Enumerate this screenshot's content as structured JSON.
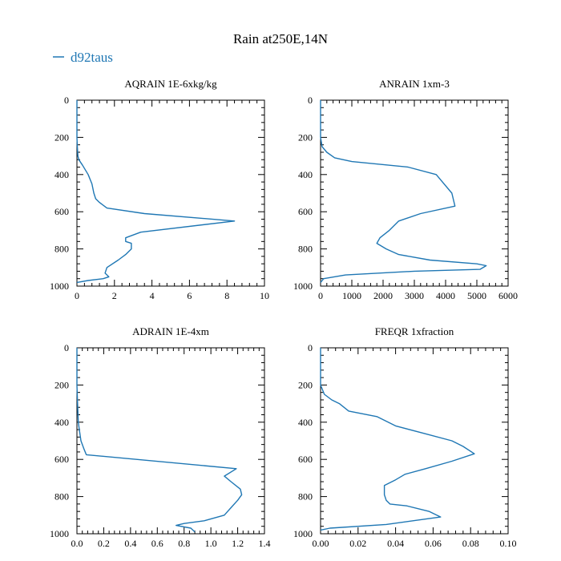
{
  "figure": {
    "title": "Rain at250E,14N",
    "legend_label": "d92taus",
    "line_color": "#1f77b4"
  },
  "chart_data": [
    {
      "type": "line",
      "title": "AQRAIN  1E-6xkg/kg",
      "xlim": [
        0,
        10
      ],
      "ylim": [
        1000,
        0
      ],
      "xticks": [
        0,
        2,
        4,
        6,
        8,
        10
      ],
      "xtick_labels": [
        "0",
        "2",
        "4",
        "6",
        "8",
        "10"
      ],
      "yticks": [
        0,
        200,
        400,
        600,
        800,
        1000
      ],
      "ytick_labels": [
        "0",
        "200",
        "400",
        "600",
        "800",
        "1000"
      ],
      "series": [
        {
          "name": "d92taus",
          "x": [
            0,
            0,
            0,
            0.02,
            0.05,
            0.1,
            0.3,
            0.6,
            0.8,
            0.9,
            1.0,
            1.2,
            1.6,
            3.6,
            8.4,
            3.4,
            2.6,
            2.6,
            2.9,
            2.9,
            2.6,
            2.2,
            1.6,
            1.5,
            1.7,
            1.4,
            0.6,
            0
          ],
          "y": [
            0,
            100,
            200,
            250,
            300,
            320,
            350,
            400,
            450,
            500,
            530,
            550,
            580,
            610,
            650,
            710,
            740,
            760,
            770,
            800,
            830,
            860,
            900,
            930,
            950,
            960,
            970,
            980
          ]
        }
      ]
    },
    {
      "type": "line",
      "title": "ANRAIN  1xm-3",
      "xlim": [
        0,
        6000
      ],
      "ylim": [
        1000,
        0
      ],
      "xticks": [
        0,
        1000,
        2000,
        3000,
        4000,
        5000,
        6000
      ],
      "xtick_labels": [
        "0",
        "1000",
        "2000",
        "3000",
        "4000",
        "5000",
        "6000"
      ],
      "yticks": [
        0,
        200,
        400,
        600,
        800,
        1000
      ],
      "ytick_labels": [
        "0",
        "200",
        "400",
        "600",
        "800",
        "1000"
      ],
      "series": [
        {
          "name": "d92taus",
          "x": [
            0,
            0,
            0,
            50,
            200,
            450,
            1000,
            2800,
            3700,
            4200,
            4300,
            3200,
            2500,
            2200,
            1900,
            1800,
            2100,
            2500,
            3500,
            5000,
            5300,
            5100,
            3000,
            800,
            100,
            0
          ],
          "y": [
            0,
            100,
            200,
            250,
            280,
            310,
            330,
            360,
            400,
            500,
            570,
            610,
            650,
            700,
            740,
            770,
            800,
            830,
            860,
            880,
            890,
            910,
            920,
            940,
            960,
            980
          ]
        }
      ]
    },
    {
      "type": "line",
      "title": "ADRAIN  1E-4xm",
      "xlim": [
        0,
        1.4
      ],
      "ylim": [
        1000,
        0
      ],
      "xticks": [
        0,
        0.2,
        0.4,
        0.6,
        0.8,
        1.0,
        1.2,
        1.4
      ],
      "xtick_labels": [
        "0.0",
        "0.2",
        "0.4",
        "0.6",
        "0.8",
        "1.0",
        "1.2",
        "1.4"
      ],
      "yticks": [
        0,
        200,
        400,
        600,
        800,
        1000
      ],
      "ytick_labels": [
        "0",
        "200",
        "400",
        "600",
        "800",
        "1000"
      ],
      "series": [
        {
          "name": "d92taus",
          "x": [
            0,
            0,
            0,
            0.005,
            0.01,
            0.02,
            0.03,
            0.05,
            0.07,
            1.19,
            1.1,
            1.15,
            1.22,
            1.23,
            1.2,
            1.15,
            1.1,
            0.95,
            0.8,
            0.74,
            0.85,
            0.88
          ],
          "y": [
            0,
            100,
            200,
            300,
            400,
            450,
            500,
            540,
            575,
            650,
            690,
            720,
            760,
            790,
            820,
            860,
            900,
            930,
            945,
            955,
            970,
            990
          ]
        }
      ]
    },
    {
      "type": "line",
      "title": "FREQR  1xfraction",
      "xlim": [
        0,
        0.1
      ],
      "ylim": [
        1000,
        0
      ],
      "xticks": [
        0,
        0.02,
        0.04,
        0.06,
        0.08,
        0.1
      ],
      "xtick_labels": [
        "0.00",
        "0.02",
        "0.04",
        "0.06",
        "0.08",
        "0.10"
      ],
      "yticks": [
        0,
        200,
        400,
        600,
        800,
        1000
      ],
      "ytick_labels": [
        "0",
        "200",
        "400",
        "600",
        "800",
        "1000"
      ],
      "series": [
        {
          "name": "d92taus",
          "x": [
            0,
            0,
            0,
            0.002,
            0.006,
            0.01,
            0.015,
            0.03,
            0.04,
            0.055,
            0.07,
            0.076,
            0.082,
            0.07,
            0.056,
            0.045,
            0.04,
            0.034,
            0.034,
            0.035,
            0.037,
            0.046,
            0.058,
            0.064,
            0.035,
            0.005,
            0
          ],
          "y": [
            0,
            100,
            200,
            250,
            280,
            300,
            340,
            370,
            420,
            460,
            500,
            530,
            570,
            610,
            650,
            680,
            710,
            740,
            790,
            820,
            840,
            850,
            880,
            910,
            950,
            970,
            980
          ]
        }
      ]
    }
  ]
}
